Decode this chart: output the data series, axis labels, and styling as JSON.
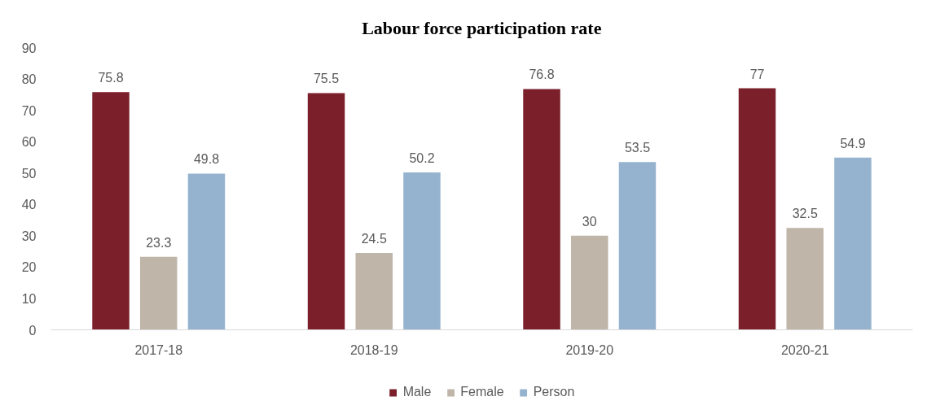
{
  "chart_data": {
    "type": "bar",
    "title": "Labour force participation rate",
    "categories": [
      "2017-18",
      "2018-19",
      "2019-20",
      "2020-21"
    ],
    "series": [
      {
        "name": "Male",
        "color": "#7b1f2a",
        "values": [
          75.8,
          75.5,
          76.8,
          77
        ]
      },
      {
        "name": "Female",
        "color": "#bfb5a8",
        "values": [
          23.3,
          24.5,
          30,
          32.5
        ]
      },
      {
        "name": "Person",
        "color": "#95b3cf",
        "values": [
          49.8,
          50.2,
          53.5,
          54.9
        ]
      }
    ],
    "ylim": [
      0,
      90
    ],
    "yticks": [
      0,
      10,
      20,
      30,
      40,
      50,
      60,
      70,
      80,
      90
    ],
    "data_labels": true,
    "legend": "bottom",
    "grid": false
  }
}
